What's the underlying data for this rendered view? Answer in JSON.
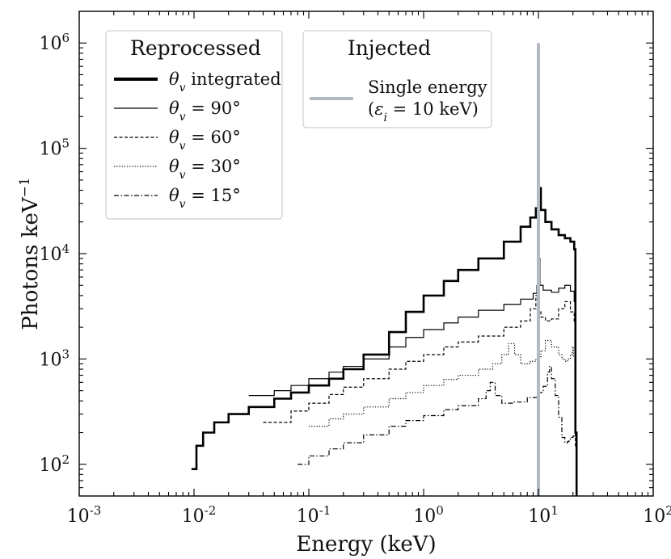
{
  "chart_data": {
    "type": "line",
    "xscale": "log",
    "yscale": "log",
    "xlim": [
      0.001,
      100
    ],
    "ylim": [
      50,
      2000000
    ],
    "xlabel": "Energy  (keV)",
    "ylabel_base": "Photons  keV",
    "ylabel_exp": "−1",
    "x_tick_labels": [
      {
        "value": 0.001,
        "base": "10",
        "exp": "-3"
      },
      {
        "value": 0.01,
        "base": "10",
        "exp": "-2"
      },
      {
        "value": 0.1,
        "base": "10",
        "exp": "-1"
      },
      {
        "value": 1,
        "base": "10",
        "exp": "0"
      },
      {
        "value": 10,
        "base": "10",
        "exp": "1"
      },
      {
        "value": 100,
        "base": "10",
        "exp": "2"
      }
    ],
    "y_tick_labels": [
      {
        "value": 100,
        "base": "10",
        "exp": "2"
      },
      {
        "value": 1000,
        "base": "10",
        "exp": "3"
      },
      {
        "value": 10000,
        "base": "10",
        "exp": "4"
      },
      {
        "value": 100000,
        "base": "10",
        "exp": "5"
      },
      {
        "value": 1000000,
        "base": "10",
        "exp": "6"
      }
    ],
    "legend_reprocessed": {
      "title": "Reprocessed",
      "entries": [
        {
          "label_sym": "θ",
          "label_sub": "v",
          "label_rest": " integrated",
          "style": "thick"
        },
        {
          "label_sym": "θ",
          "label_sub": "v",
          "label_rest": " = 90°",
          "style": "solid"
        },
        {
          "label_sym": "θ",
          "label_sub": "v",
          "label_rest": " = 60°",
          "style": "dashed"
        },
        {
          "label_sym": "θ",
          "label_sub": "v",
          "label_rest": " = 30°",
          "style": "dotted"
        },
        {
          "label_sym": "θ",
          "label_sub": "v",
          "label_rest": " = 15°",
          "style": "dashdot"
        }
      ]
    },
    "legend_injected": {
      "title": "Injected",
      "line1": "Single energy",
      "line2_open": "(",
      "line2_sym": "ε",
      "line2_sub": "i",
      "line2_rest": " = 10 keV)",
      "color": "#b4bac3"
    },
    "injected_line": {
      "energy_keV": 10,
      "y_low": 50,
      "y_high": 1000000,
      "color": "#b4bac3"
    },
    "series": [
      {
        "name": "θv integrated",
        "style": "thick",
        "x": [
          0.0095,
          0.0105,
          0.012,
          0.015,
          0.02,
          0.03,
          0.05,
          0.07,
          0.1,
          0.15,
          0.2,
          0.3,
          0.5,
          0.7,
          1,
          1.5,
          2,
          3,
          5,
          7,
          8.5,
          9.5,
          10,
          10.5,
          11.5,
          13,
          15,
          17,
          19,
          20.5,
          21,
          21.5
        ],
        "y": [
          90,
          150,
          200,
          250,
          300,
          350,
          420,
          480,
          560,
          650,
          800,
          1100,
          1800,
          2800,
          4000,
          5500,
          7000,
          9000,
          13000,
          18000,
          22000,
          27000,
          42000,
          26000,
          20000,
          17000,
          15000,
          14000,
          13000,
          11000,
          200,
          50
        ]
      },
      {
        "name": "θv = 90°",
        "style": "solid",
        "x": [
          0.03,
          0.05,
          0.07,
          0.1,
          0.15,
          0.2,
          0.3,
          0.5,
          0.7,
          1,
          1.5,
          2,
          3,
          5,
          7,
          9,
          9.7,
          10,
          10.3,
          11,
          13,
          15,
          17,
          19,
          20.5,
          21,
          21.5
        ],
        "y": [
          450,
          500,
          560,
          650,
          750,
          850,
          1000,
          1300,
          1600,
          1900,
          2200,
          2500,
          2900,
          3300,
          3700,
          4200,
          5000,
          9000,
          5000,
          4500,
          4300,
          4700,
          5000,
          4400,
          3500,
          200,
          50
        ]
      },
      {
        "name": "θv = 60°",
        "style": "dashed",
        "x": [
          0.04,
          0.07,
          0.1,
          0.15,
          0.2,
          0.3,
          0.5,
          0.7,
          1,
          1.5,
          2,
          3,
          5,
          7,
          8.5,
          9.5,
          10,
          10.5,
          11.5,
          13,
          15,
          17,
          19,
          20.5,
          21,
          21.5
        ],
        "y": [
          250,
          320,
          380,
          460,
          540,
          650,
          800,
          950,
          1100,
          1300,
          1450,
          1650,
          2000,
          2300,
          3000,
          4000,
          2800,
          2500,
          2300,
          2400,
          3000,
          3500,
          2800,
          2200,
          150,
          50
        ]
      },
      {
        "name": "θv = 30°",
        "style": "dotted",
        "x": [
          0.1,
          0.15,
          0.2,
          0.3,
          0.5,
          0.7,
          1,
          1.5,
          2,
          3,
          4,
          4.8,
          5.5,
          6.2,
          7,
          8.5,
          9.5,
          10,
          10.5,
          11.5,
          13,
          15,
          16,
          17,
          18,
          19,
          19.8,
          20.2,
          20.8
        ],
        "y": [
          230,
          270,
          300,
          350,
          420,
          480,
          560,
          640,
          700,
          800,
          900,
          1100,
          1400,
          1100,
          900,
          950,
          1000,
          1050,
          1200,
          1500,
          1300,
          1100,
          1000,
          950,
          1000,
          1100,
          1300,
          1050,
          300
        ]
      },
      {
        "name": "θv = 15°",
        "style": "dashdot",
        "x": [
          0.08,
          0.1,
          0.15,
          0.2,
          0.3,
          0.5,
          0.7,
          1,
          1.5,
          2,
          3,
          3.5,
          3.8,
          4.2,
          4.8,
          6,
          8,
          10,
          11,
          12,
          12.5,
          13,
          14,
          15,
          16,
          17,
          18,
          18.5,
          19,
          19.5,
          20,
          20.5,
          21,
          21.5
        ],
        "y": [
          100,
          120,
          140,
          160,
          190,
          230,
          260,
          290,
          330,
          360,
          420,
          500,
          600,
          450,
          380,
          390,
          430,
          480,
          550,
          750,
          850,
          650,
          450,
          280,
          180,
          160,
          165,
          170,
          175,
          180,
          185,
          190,
          180,
          50
        ]
      }
    ]
  }
}
